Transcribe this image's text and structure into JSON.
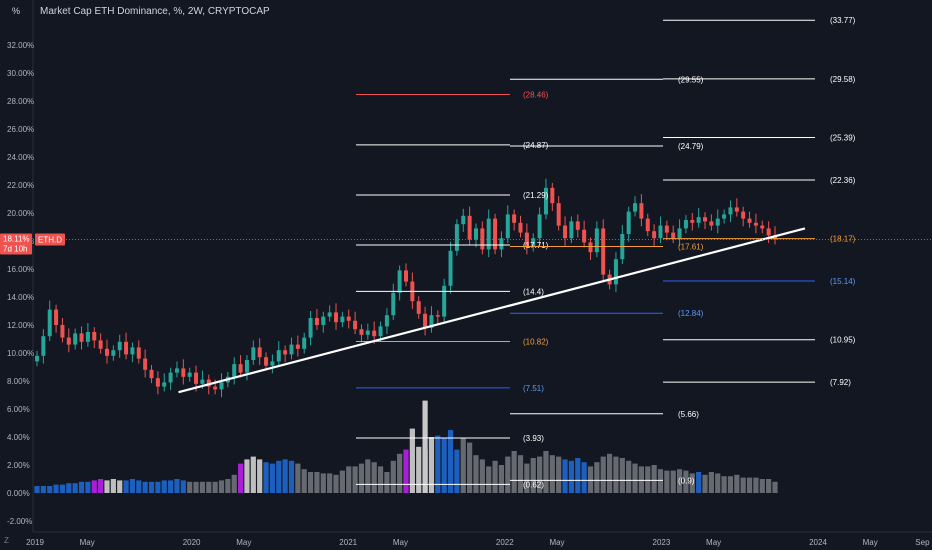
{
  "header": {
    "title": "Market Cap ETH Dominance, %, 2W, CRYPTOCAP",
    "scale_button": "%",
    "tz_label": "Z"
  },
  "price_tag": {
    "value": "18.11%",
    "countdown": "7d 10h",
    "symbol": "ETH.D"
  },
  "colors": {
    "background": "#131722",
    "up": "#26a69a",
    "down": "#ef5350",
    "tag": "#ef5350",
    "line_white": "#ffffff",
    "line_red": "#ef5350",
    "line_orange": "#f59d3c",
    "line_blue": "#2962ff",
    "vol_blue": "#1e63c8",
    "vol_purple": "#b020e0",
    "vol_white": "#c8c8c8",
    "vol_grey": "#6b6e75"
  },
  "chart_data": {
    "type": "candlestick",
    "title": "Market Cap ETH Dominance, %, 2W, CRYPTOCAP",
    "ylim": [
      -2.5,
      34
    ],
    "y_ticks": [
      "-2.00%",
      "0.00%",
      "2.00%",
      "4.00%",
      "6.00%",
      "8.00%",
      "10.00%",
      "12.00%",
      "14.00%",
      "16.00%",
      "18.00%",
      "20.00%",
      "22.00%",
      "24.00%",
      "26.00%",
      "28.00%",
      "30.00%",
      "32.00%"
    ],
    "x_ticks": [
      "2019",
      "May",
      "2020",
      "May",
      "2021",
      "May",
      "2022",
      "May",
      "2023",
      "May",
      "2024",
      "May",
      "Sep"
    ],
    "x_tick_dates": [
      "2019-01",
      "2019-05",
      "2020-01",
      "2020-05",
      "2021-01",
      "2021-05",
      "2022-01",
      "2022-05",
      "2023-01",
      "2023-05",
      "2024-01",
      "2024-05",
      "2024-09"
    ],
    "closes": [
      9.8,
      11.2,
      13.1,
      12.0,
      11.1,
      10.6,
      11.4,
      10.8,
      11.5,
      10.9,
      10.3,
      9.8,
      10.2,
      10.8,
      9.9,
      10.4,
      9.6,
      8.8,
      8.2,
      7.6,
      7.9,
      8.6,
      8.9,
      8.3,
      8.6,
      7.8,
      8.1,
      7.6,
      7.4,
      7.9,
      8.3,
      9.2,
      8.6,
      9.5,
      10.4,
      9.7,
      9.1,
      9.4,
      10.2,
      9.9,
      10.6,
      10.3,
      11.1,
      12.5,
      12.0,
      12.6,
      12.9,
      12.2,
      12.6,
      12.3,
      11.7,
      11.3,
      11.6,
      11.2,
      11.9,
      12.7,
      14.3,
      15.9,
      15.1,
      13.7,
      12.8,
      11.8,
      12.7,
      12.6,
      14.8,
      17.3,
      19.2,
      19.8,
      18.1,
      18.9,
      17.4,
      19.6,
      17.4,
      18.2,
      19.9,
      19.3,
      18.6,
      17.6,
      18.2,
      19.9,
      21.8,
      20.7,
      19.1,
      18.2,
      19.4,
      18.8,
      17.9,
      17.2,
      18.9,
      15.6,
      14.9,
      16.7,
      18.5,
      20.1,
      20.7,
      19.6,
      18.7,
      18.2,
      19.1,
      18.6,
      18.2,
      18.9,
      19.5,
      19.3,
      19.7,
      19.4,
      19.1,
      19.6,
      19.9,
      20.4,
      20.1,
      19.6,
      19.3,
      19.1,
      18.9,
      18.4,
      18.11
    ],
    "volumes": [
      0.5,
      0.5,
      0.5,
      0.6,
      0.6,
      0.7,
      0.7,
      0.8,
      0.8,
      0.9,
      1.0,
      0.9,
      1.0,
      0.9,
      0.9,
      1.0,
      0.9,
      0.8,
      0.8,
      0.8,
      0.9,
      0.9,
      1.0,
      0.9,
      0.8,
      0.8,
      0.8,
      0.8,
      0.8,
      0.9,
      1.0,
      1.3,
      2.1,
      2.4,
      2.6,
      2.4,
      2.2,
      2.1,
      2.3,
      2.4,
      2.3,
      2.1,
      1.7,
      1.5,
      1.5,
      1.4,
      1.4,
      1.3,
      1.6,
      1.9,
      1.9,
      2.1,
      2.4,
      2.2,
      1.9,
      1.5,
      2.3,
      2.8,
      3.1,
      4.6,
      3.3,
      3.1,
      4.0,
      4.1,
      3.9,
      4.5,
      3.1,
      3.9,
      3.6,
      2.7,
      2.4,
      1.9,
      2.3,
      2.0,
      2.6,
      3.0,
      2.7,
      2.1,
      2.5,
      2.6,
      3.0,
      2.7,
      2.6,
      2.4,
      2.3,
      2.5,
      2.2,
      1.9,
      2.2,
      2.6,
      2.8,
      2.6,
      2.5,
      2.3,
      2.1,
      1.9,
      1.9,
      2.0,
      1.7,
      1.6,
      1.6,
      1.7,
      1.6,
      1.4,
      1.5,
      1.3,
      1.5,
      1.4,
      1.2,
      1.2,
      1.3,
      1.1,
      1.1,
      1.1,
      1.0,
      1.0,
      0.8
    ],
    "overlay_volume_peak": 6.6,
    "trendline": {
      "from_date": "2019-12",
      "from_value": 7.2,
      "to_date": "2023-12",
      "to_value": 18.9
    },
    "levels": [
      {
        "label": "(33.77)",
        "value": 33.77,
        "color": "white"
      },
      {
        "label": "(29.55)",
        "value": 29.55,
        "color": "white"
      },
      {
        "label": "(29.58)",
        "value": 29.58,
        "color": "white"
      },
      {
        "label": "(28.46)",
        "value": 28.46,
        "color": "red"
      },
      {
        "label": "(24.87)",
        "value": 24.87,
        "color": "white"
      },
      {
        "label": "(24.79)",
        "value": 24.79,
        "color": "white"
      },
      {
        "label": "(25.39)",
        "value": 25.39,
        "color": "white"
      },
      {
        "label": "(22.36)",
        "value": 22.36,
        "color": "white"
      },
      {
        "label": "(21.29)",
        "value": 21.29,
        "color": "white"
      },
      {
        "label": "(17.71)",
        "value": 17.71,
        "color": "white"
      },
      {
        "label": "(17.61)",
        "value": 17.61,
        "color": "orange"
      },
      {
        "label": "(18.17)",
        "value": 18.17,
        "color": "orange"
      },
      {
        "label": "(15.14)",
        "value": 15.14,
        "color": "blue"
      },
      {
        "label": "(14.4)",
        "value": 14.4,
        "color": "white"
      },
      {
        "label": "(12.84)",
        "value": 12.84,
        "color": "blue"
      },
      {
        "label": "(10.82)",
        "value": 10.82,
        "color": "orange"
      },
      {
        "label": "(10.95)",
        "value": 10.95,
        "color": "white"
      },
      {
        "label": "(7.51)",
        "value": 7.51,
        "color": "blue"
      },
      {
        "label": "(7.92)",
        "value": 7.92,
        "color": "white"
      },
      {
        "label": "(5.66)",
        "value": 5.66,
        "color": "white"
      },
      {
        "label": "(3.93)",
        "value": 3.93,
        "color": "white"
      },
      {
        "label": "(0.62)",
        "value": 0.62,
        "color": "white"
      },
      {
        "label": "(0.9)",
        "value": 0.9,
        "color": "white"
      }
    ]
  }
}
